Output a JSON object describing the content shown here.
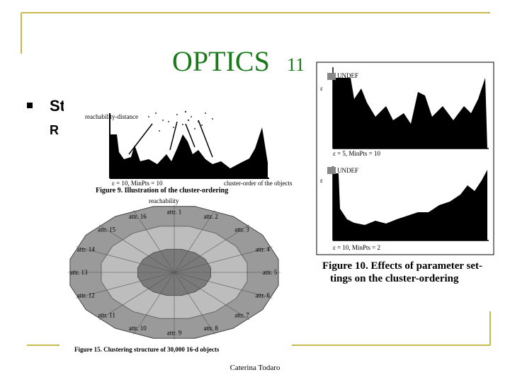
{
  "title": "OPTICS",
  "title_suffix": "11",
  "bullets": [
    "St",
    "R"
  ],
  "figure9": {
    "caption": "Figure 9. Illustration of the cluster-ordering",
    "y_label": "reachability-distance",
    "x_label": "cluster-order of the objects",
    "params": "ε = 10, MinPts = 10"
  },
  "figure15": {
    "caption": "Figure 15. Clustering structure of 30,000 16-d objects",
    "center_label": "reachability",
    "attributes": [
      "attr. 1",
      "attr. 2",
      "attr. 3",
      "attr. 4",
      "attr. 5",
      "attr. 6",
      "attr. 7",
      "attr. 8",
      "attr. 9",
      "attr. 10",
      "attr. 11",
      "attr. 12",
      "attr. 13",
      "attr. 14",
      "attr. 15",
      "attr. 16"
    ]
  },
  "figure10": {
    "caption_lines": [
      "Figure 10. Effects of parameter set-",
      "tings on the cluster-ordering"
    ],
    "undef_label": "UNDEF",
    "axis_symbol": "ε",
    "top_params": "ε = 5, MinPts = 10",
    "bottom_params": "ε = 10, MinPts = 2"
  },
  "footer": "Caterina Todaro"
}
